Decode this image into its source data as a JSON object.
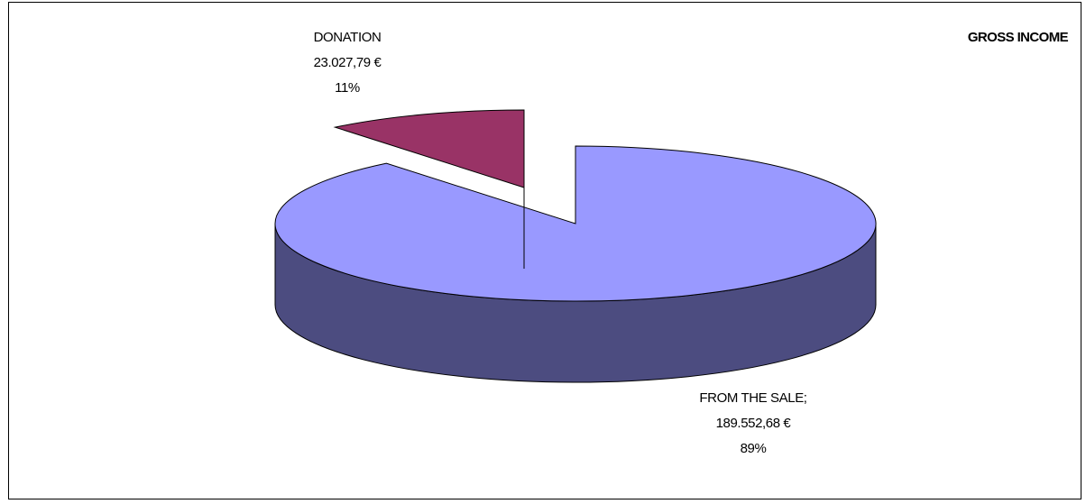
{
  "chart_data": {
    "type": "pie",
    "title": "GROSS INCOME",
    "slices": [
      {
        "name": "FROM THE SALE;",
        "amount": "189.552,68 €",
        "value": 189552.68,
        "percent": "89%",
        "color": "#9999FF",
        "side_color": "#4C4C80"
      },
      {
        "name": "DONATION",
        "amount": "23.027,79 €",
        "value": 23027.79,
        "percent": "11%",
        "color": "#993366",
        "side_color": "#4D1933"
      }
    ],
    "style": "3d-exploded",
    "legend": "none"
  }
}
